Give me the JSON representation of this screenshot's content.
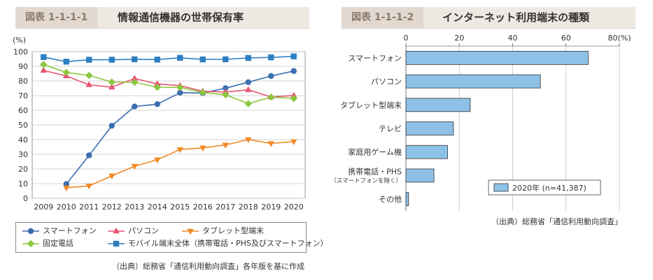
{
  "left_panel": {
    "fig_no": "図表 1-1-1-1",
    "title": "情報通信機器の世帯保有率",
    "source": "（出典）総務省「通信利用動向調査」各年版を基に作成"
  },
  "right_panel": {
    "fig_no": "図表 1-1-1-2",
    "title": "インターネット利用端末の種類",
    "source": "（出典）総務省「通信利用動向調査」"
  },
  "chart_data": [
    {
      "type": "line",
      "title": "情報通信機器の世帯保有率",
      "unit_label": "(%)",
      "x": [
        2009,
        2010,
        2011,
        2012,
        2013,
        2014,
        2015,
        2016,
        2017,
        2018,
        2019,
        2020
      ],
      "ylim": [
        0,
        100
      ],
      "yticks": [
        0,
        10,
        20,
        30,
        40,
        50,
        60,
        70,
        80,
        90,
        100
      ],
      "grid": true,
      "series": [
        {
          "name": "スマートフォン",
          "marker": "circle",
          "color": "#3a6fb0",
          "values": [
            null,
            9.7,
            29.3,
            49.5,
            62.6,
            64.2,
            72.0,
            71.8,
            75.1,
            79.2,
            83.4,
            86.8
          ]
        },
        {
          "name": "パソコン",
          "marker": "triangle-up",
          "color": "#e8546e",
          "values": [
            87.2,
            83.4,
            77.4,
            75.8,
            81.7,
            78.0,
            76.8,
            73.0,
            72.5,
            74.0,
            69.1,
            70.1
          ]
        },
        {
          "name": "タブレット型端末",
          "marker": "triangle-down",
          "color": "#f08a24",
          "values": [
            null,
            7.2,
            8.5,
            15.3,
            21.9,
            26.3,
            33.3,
            34.4,
            36.4,
            40.1,
            37.4,
            38.7
          ]
        },
        {
          "name": "固定電話",
          "marker": "diamond",
          "color": "#8cc63f",
          "values": [
            91.2,
            85.8,
            83.8,
            79.3,
            79.1,
            75.7,
            75.6,
            72.2,
            70.6,
            64.5,
            69.0,
            68.1
          ]
        },
        {
          "name": "モバイル端末全体（携帯電話・PHS及びスマートフォン）",
          "marker": "square",
          "color": "#2e7fc1",
          "values": [
            96.3,
            93.2,
            94.5,
            94.5,
            94.8,
            94.6,
            95.8,
            94.7,
            94.8,
            95.7,
            96.1,
            96.8
          ]
        }
      ]
    },
    {
      "type": "bar",
      "orientation": "horizontal",
      "title": "インターネット利用端末の種類",
      "unit_label": "80(%)",
      "categories": [
        "スマートフォン",
        "パソコン",
        "タブレット型端末",
        "テレビ",
        "家庭用ゲーム機",
        "携帯電話・PHS",
        "その他"
      ],
      "category_sublabels": [
        "",
        "",
        "",
        "",
        "",
        "（スマートフォンを除く）",
        ""
      ],
      "values": [
        68.3,
        50.4,
        24.1,
        17.8,
        15.6,
        10.5,
        1.0
      ],
      "xlim": [
        0,
        80
      ],
      "xticks": [
        0,
        20,
        40,
        60,
        80
      ],
      "tick_labels": [
        "0",
        "20",
        "40",
        "60",
        "80(%)"
      ],
      "grid": true,
      "legend": "2020年 (n=41,387)",
      "color": "#8ec1e8"
    }
  ]
}
